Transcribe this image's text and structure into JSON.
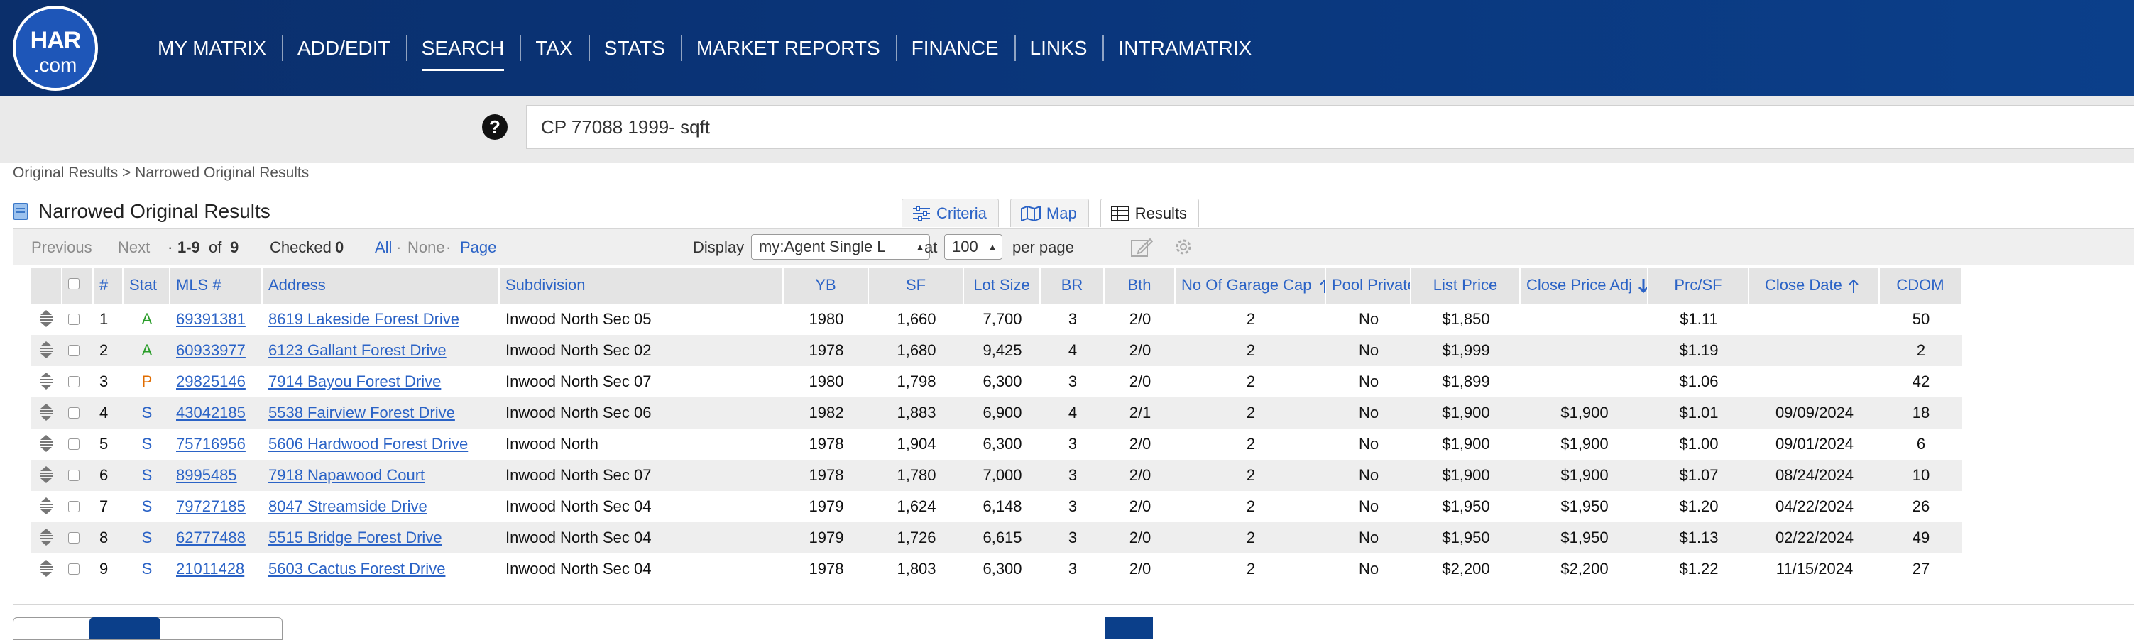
{
  "logo": {
    "line1": "HAR",
    "line2": ".com"
  },
  "nav": [
    {
      "label": "MY MATRIX"
    },
    {
      "label": "ADD/EDIT"
    },
    {
      "label": "SEARCH",
      "active": true
    },
    {
      "label": "TAX"
    },
    {
      "label": "STATS"
    },
    {
      "label": "MARKET REPORTS"
    },
    {
      "label": "FINANCE"
    },
    {
      "label": "LINKS"
    },
    {
      "label": "INTRAMATRIX"
    }
  ],
  "search": {
    "help": "?",
    "value": "CP 77088 1999- sqft"
  },
  "breadcrumb": "Original Results > Narrowed Original Results",
  "page_title": "Narrowed Original Results",
  "view_tabs": [
    {
      "label": "Criteria",
      "icon": "sliders-icon"
    },
    {
      "label": "Map",
      "icon": "map-icon"
    },
    {
      "label": "Results",
      "icon": "table-icon",
      "active": true
    }
  ],
  "toolbar": {
    "previous": "Previous",
    "next": "Next",
    "range_prefix": "·",
    "range": "1-9",
    "of": "of",
    "total": "9",
    "checked_label": "Checked",
    "checked_count": "0",
    "all": "All",
    "dot": "·",
    "none": "None",
    "page": "Page",
    "display_label": "Display",
    "display_value": "my:Agent Single L",
    "at_label": "at",
    "per_page_value": "100",
    "per_page_label": "per page"
  },
  "table": {
    "headers": [
      "#",
      "Stat",
      "MLS #",
      "Address",
      "Subdivision",
      "YB",
      "SF",
      "Lot Size",
      "BR",
      "Bth",
      "No Of Garage Cap",
      "Pool Private",
      "List Price",
      "Close Price Adj",
      "Prc/SF",
      "Close Date",
      "CDOM"
    ],
    "rows": [
      {
        "n": "1",
        "stat": "A",
        "mls": "69391381",
        "address": "8619 Lakeside Forest Drive",
        "subdivision": "Inwood North Sec 05",
        "yb": "1980",
        "sf": "1,660",
        "lot": "7,700",
        "br": "3",
        "bth": "2/0",
        "garage": "2",
        "pool": "No",
        "list": "$1,850",
        "close_price": "",
        "prcsf": "$1.11",
        "close_date": "",
        "cdom": "50"
      },
      {
        "n": "2",
        "stat": "A",
        "mls": "60933977",
        "address": "6123 Gallant Forest Drive",
        "subdivision": "Inwood North Sec 02",
        "yb": "1978",
        "sf": "1,680",
        "lot": "9,425",
        "br": "4",
        "bth": "2/0",
        "garage": "2",
        "pool": "No",
        "list": "$1,999",
        "close_price": "",
        "prcsf": "$1.19",
        "close_date": "",
        "cdom": "2"
      },
      {
        "n": "3",
        "stat": "P",
        "mls": "29825146",
        "address": "7914 Bayou Forest Drive",
        "subdivision": "Inwood North Sec 07",
        "yb": "1980",
        "sf": "1,798",
        "lot": "6,300",
        "br": "3",
        "bth": "2/0",
        "garage": "2",
        "pool": "No",
        "list": "$1,899",
        "close_price": "",
        "prcsf": "$1.06",
        "close_date": "",
        "cdom": "42"
      },
      {
        "n": "4",
        "stat": "S",
        "mls": "43042185",
        "address": "5538 Fairview Forest Drive",
        "subdivision": "Inwood North Sec 06",
        "yb": "1982",
        "sf": "1,883",
        "lot": "6,900",
        "br": "4",
        "bth": "2/1",
        "garage": "2",
        "pool": "No",
        "list": "$1,900",
        "close_price": "$1,900",
        "prcsf": "$1.01",
        "close_date": "09/09/2024",
        "cdom": "18"
      },
      {
        "n": "5",
        "stat": "S",
        "mls": "75716956",
        "address": "5606 Hardwood Forest Drive",
        "subdivision": "Inwood North",
        "yb": "1978",
        "sf": "1,904",
        "lot": "6,300",
        "br": "3",
        "bth": "2/0",
        "garage": "2",
        "pool": "No",
        "list": "$1,900",
        "close_price": "$1,900",
        "prcsf": "$1.00",
        "close_date": "09/01/2024",
        "cdom": "6"
      },
      {
        "n": "6",
        "stat": "S",
        "mls": "8995485",
        "address": "7918 Napawood Court",
        "subdivision": "Inwood North Sec 07",
        "yb": "1978",
        "sf": "1,780",
        "lot": "7,000",
        "br": "3",
        "bth": "2/0",
        "garage": "2",
        "pool": "No",
        "list": "$1,900",
        "close_price": "$1,900",
        "prcsf": "$1.07",
        "close_date": "08/24/2024",
        "cdom": "10"
      },
      {
        "n": "7",
        "stat": "S",
        "mls": "79727185",
        "address": "8047 Streamside Drive",
        "subdivision": "Inwood North Sec 04",
        "yb": "1979",
        "sf": "1,624",
        "lot": "6,148",
        "br": "3",
        "bth": "2/0",
        "garage": "2",
        "pool": "No",
        "list": "$1,950",
        "close_price": "$1,950",
        "prcsf": "$1.20",
        "close_date": "04/22/2024",
        "cdom": "26"
      },
      {
        "n": "8",
        "stat": "S",
        "mls": "62777488",
        "address": "5515 Bridge Forest Drive",
        "subdivision": "Inwood North Sec 04",
        "yb": "1979",
        "sf": "1,726",
        "lot": "6,615",
        "br": "3",
        "bth": "2/0",
        "garage": "2",
        "pool": "No",
        "list": "$1,950",
        "close_price": "$1,950",
        "prcsf": "$1.13",
        "close_date": "02/22/2024",
        "cdom": "49"
      },
      {
        "n": "9",
        "stat": "S",
        "mls": "21011428",
        "address": "5603 Cactus Forest Drive",
        "subdivision": "Inwood North Sec 04",
        "yb": "1978",
        "sf": "1,803",
        "lot": "6,300",
        "br": "3",
        "bth": "2/0",
        "garage": "2",
        "pool": "No",
        "list": "$2,200",
        "close_price": "$2,200",
        "prcsf": "$1.22",
        "close_date": "11/15/2024",
        "cdom": "27"
      }
    ]
  },
  "colors": {
    "nav_bg": "#0b3f8a",
    "link": "#2b63c6",
    "stat_A": "#2a9d2a",
    "stat_P": "#e06c00",
    "stat_S": "#2b63c6"
  }
}
